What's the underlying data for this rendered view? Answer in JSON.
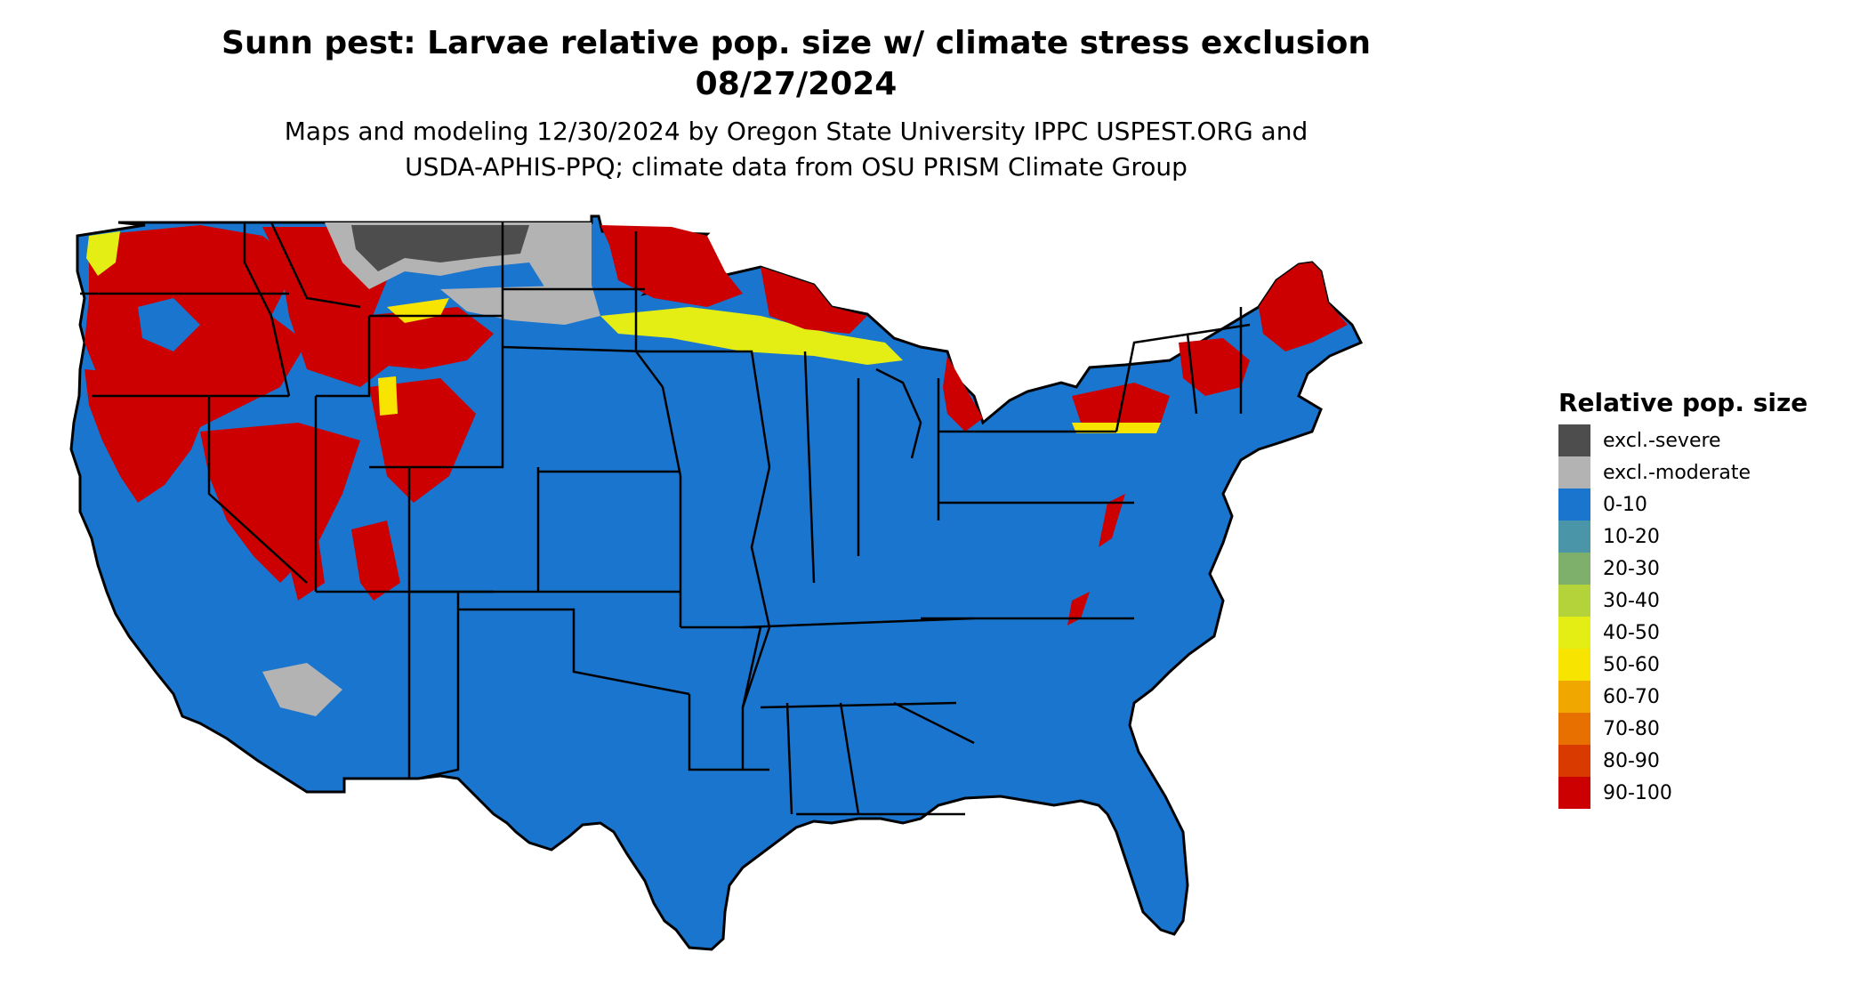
{
  "title": {
    "line1": "Sunn pest: Larvae relative pop. size w/ climate stress exclusion",
    "line2": "08/27/2024"
  },
  "subtitle": {
    "line1": "Maps and modeling 12/30/2024 by Oregon State University IPPC USPEST.ORG and",
    "line2": "USDA-APHIS-PPQ; climate data from OSU PRISM Climate Group"
  },
  "map": {
    "region": "contiguous-united-states",
    "fill_color": "#1a75cf",
    "border_color": "#000000"
  },
  "legend": {
    "title": "Relative pop. size",
    "items": [
      {
        "label": "excl.-severe",
        "color": "#4d4d4d"
      },
      {
        "label": "excl.-moderate",
        "color": "#b3b3b3"
      },
      {
        "label": "0-10",
        "color": "#1a75cf"
      },
      {
        "label": "10-20",
        "color": "#4a96a8"
      },
      {
        "label": "20-30",
        "color": "#7fb06b"
      },
      {
        "label": "30-40",
        "color": "#b4d33a"
      },
      {
        "label": "40-50",
        "color": "#e4ee14"
      },
      {
        "label": "50-60",
        "color": "#f7e400"
      },
      {
        "label": "60-70",
        "color": "#f0a800"
      },
      {
        "label": "70-80",
        "color": "#e87000"
      },
      {
        "label": "80-90",
        "color": "#d83a00"
      },
      {
        "label": "90-100",
        "color": "#cc0000"
      }
    ]
  }
}
